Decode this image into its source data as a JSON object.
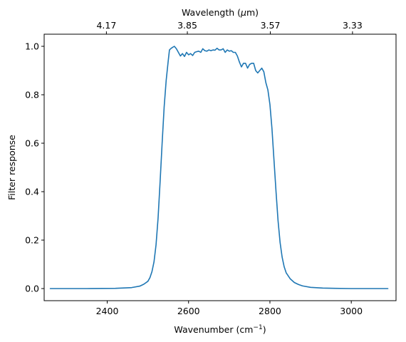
{
  "chart_data": {
    "type": "line",
    "xlabel_text": "Wavenumber (cm",
    "xlabel_sup": "−1",
    "xlabel_close": ")",
    "ylabel": "Filter response",
    "top_xlabel_text": "Wavelength (",
    "top_xlabel_mu": "μ",
    "top_xlabel_close": "m)",
    "xlim": [
      2245,
      3110
    ],
    "ylim": [
      -0.05,
      1.05
    ],
    "x_ticks": [
      2400,
      2600,
      2800,
      3000
    ],
    "x_tick_labels": [
      "2400",
      "2600",
      "2800",
      "3000"
    ],
    "y_ticks": [
      0.0,
      0.2,
      0.4,
      0.6,
      0.8,
      1.0
    ],
    "y_tick_labels": [
      "0.0",
      "0.2",
      "0.4",
      "0.6",
      "0.8",
      "1.0"
    ],
    "top_ticks": [
      2398,
      2597,
      2801,
      3003
    ],
    "top_tick_labels": [
      "4.17",
      "3.85",
      "3.57",
      "3.33"
    ],
    "grid": false,
    "color": "#1f77b4",
    "series": [
      {
        "x": [
          2260,
          2350,
          2420,
          2460,
          2480,
          2490,
          2500,
          2505,
          2510,
          2515,
          2520,
          2525,
          2530,
          2535,
          2540,
          2545,
          2550,
          2553,
          2556,
          2560,
          2565,
          2570,
          2575,
          2580,
          2585,
          2590,
          2595,
          2600,
          2605,
          2610,
          2615,
          2620,
          2625,
          2630,
          2635,
          2640,
          2645,
          2650,
          2655,
          2660,
          2665,
          2670,
          2675,
          2680,
          2685,
          2690,
          2695,
          2700,
          2705,
          2710,
          2715,
          2720,
          2725,
          2730,
          2735,
          2740,
          2745,
          2750,
          2755,
          2760,
          2765,
          2770,
          2775,
          2780,
          2785,
          2790,
          2795,
          2800,
          2805,
          2810,
          2815,
          2820,
          2825,
          2830,
          2835,
          2840,
          2850,
          2860,
          2870,
          2880,
          2900,
          2930,
          2960,
          3000,
          3050,
          3090
        ],
        "y": [
          0.0,
          0.0,
          0.001,
          0.004,
          0.01,
          0.018,
          0.03,
          0.045,
          0.07,
          0.11,
          0.18,
          0.29,
          0.44,
          0.6,
          0.75,
          0.86,
          0.94,
          0.985,
          0.99,
          0.995,
          1.0,
          0.99,
          0.975,
          0.96,
          0.97,
          0.958,
          0.975,
          0.965,
          0.97,
          0.962,
          0.975,
          0.978,
          0.98,
          0.975,
          0.99,
          0.982,
          0.98,
          0.985,
          0.982,
          0.985,
          0.984,
          0.992,
          0.985,
          0.985,
          0.99,
          0.975,
          0.985,
          0.98,
          0.982,
          0.975,
          0.975,
          0.96,
          0.935,
          0.915,
          0.93,
          0.93,
          0.91,
          0.925,
          0.93,
          0.93,
          0.9,
          0.89,
          0.9,
          0.91,
          0.895,
          0.85,
          0.82,
          0.76,
          0.66,
          0.53,
          0.4,
          0.28,
          0.19,
          0.13,
          0.09,
          0.065,
          0.04,
          0.025,
          0.017,
          0.011,
          0.005,
          0.002,
          0.001,
          0.0,
          0.0,
          0.0
        ]
      }
    ]
  }
}
